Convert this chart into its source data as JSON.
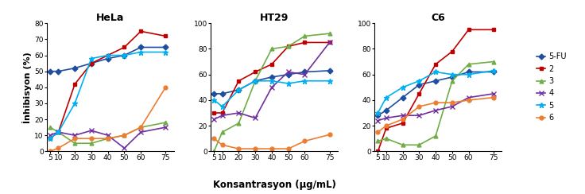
{
  "x": [
    5,
    10,
    20,
    30,
    40,
    50,
    60,
    75
  ],
  "panels": [
    {
      "title": "HeLa",
      "ylim": [
        0,
        80
      ],
      "yticks": [
        0,
        10,
        20,
        30,
        40,
        50,
        60,
        70,
        80
      ],
      "series": {
        "5-FU": [
          50,
          50,
          52,
          55,
          58,
          60,
          65,
          65
        ],
        "2": [
          8,
          12,
          42,
          55,
          60,
          65,
          75,
          72
        ],
        "3": [
          15,
          12,
          5,
          5,
          8,
          10,
          15,
          18
        ],
        "4": [
          10,
          12,
          10,
          13,
          10,
          2,
          12,
          15
        ],
        "5": [
          8,
          12,
          30,
          58,
          60,
          60,
          62,
          62
        ],
        "6": [
          0,
          2,
          8,
          8,
          8,
          10,
          15,
          40
        ]
      }
    },
    {
      "title": "HT29",
      "ylim": [
        0,
        100
      ],
      "yticks": [
        0,
        20,
        40,
        60,
        80,
        100
      ],
      "series": {
        "5-FU": [
          45,
          45,
          48,
          55,
          58,
          60,
          62,
          63
        ],
        "2": [
          30,
          30,
          55,
          62,
          68,
          82,
          85,
          85
        ],
        "3": [
          0,
          15,
          22,
          55,
          80,
          82,
          90,
          92
        ],
        "4": [
          25,
          28,
          30,
          26,
          50,
          62,
          60,
          85
        ],
        "5": [
          40,
          35,
          48,
          55,
          55,
          53,
          55,
          55
        ],
        "6": [
          10,
          5,
          2,
          2,
          2,
          2,
          8,
          13
        ]
      }
    },
    {
      "title": "C6",
      "ylim": [
        0,
        100
      ],
      "yticks": [
        0,
        20,
        40,
        60,
        80,
        100
      ],
      "series": {
        "5-FU": [
          28,
          32,
          42,
          52,
          55,
          58,
          62,
          62
        ],
        "2": [
          0,
          18,
          22,
          45,
          68,
          78,
          95,
          95
        ],
        "3": [
          8,
          10,
          5,
          5,
          12,
          55,
          68,
          70
        ],
        "4": [
          24,
          26,
          28,
          28,
          32,
          35,
          42,
          45
        ],
        "5": [
          30,
          42,
          50,
          55,
          62,
          60,
          60,
          63
        ],
        "6": [
          15,
          20,
          25,
          35,
          38,
          38,
          40,
          42
        ]
      }
    }
  ],
  "colors": {
    "5-FU": "#1f4e9f",
    "2": "#c00000",
    "3": "#70ad47",
    "4": "#7030a0",
    "5": "#00b0f0",
    "6": "#ed7d31"
  },
  "markers": {
    "5-FU": "D",
    "2": "s",
    "3": "^",
    "4": "x",
    "5": "*",
    "6": "o"
  },
  "xlabel": "Konsantrasyon (µg/mL)",
  "ylabel": "İnhibisyon (%)",
  "legend_labels": [
    "5-FU",
    "2",
    "3",
    "4",
    "5",
    "6"
  ]
}
